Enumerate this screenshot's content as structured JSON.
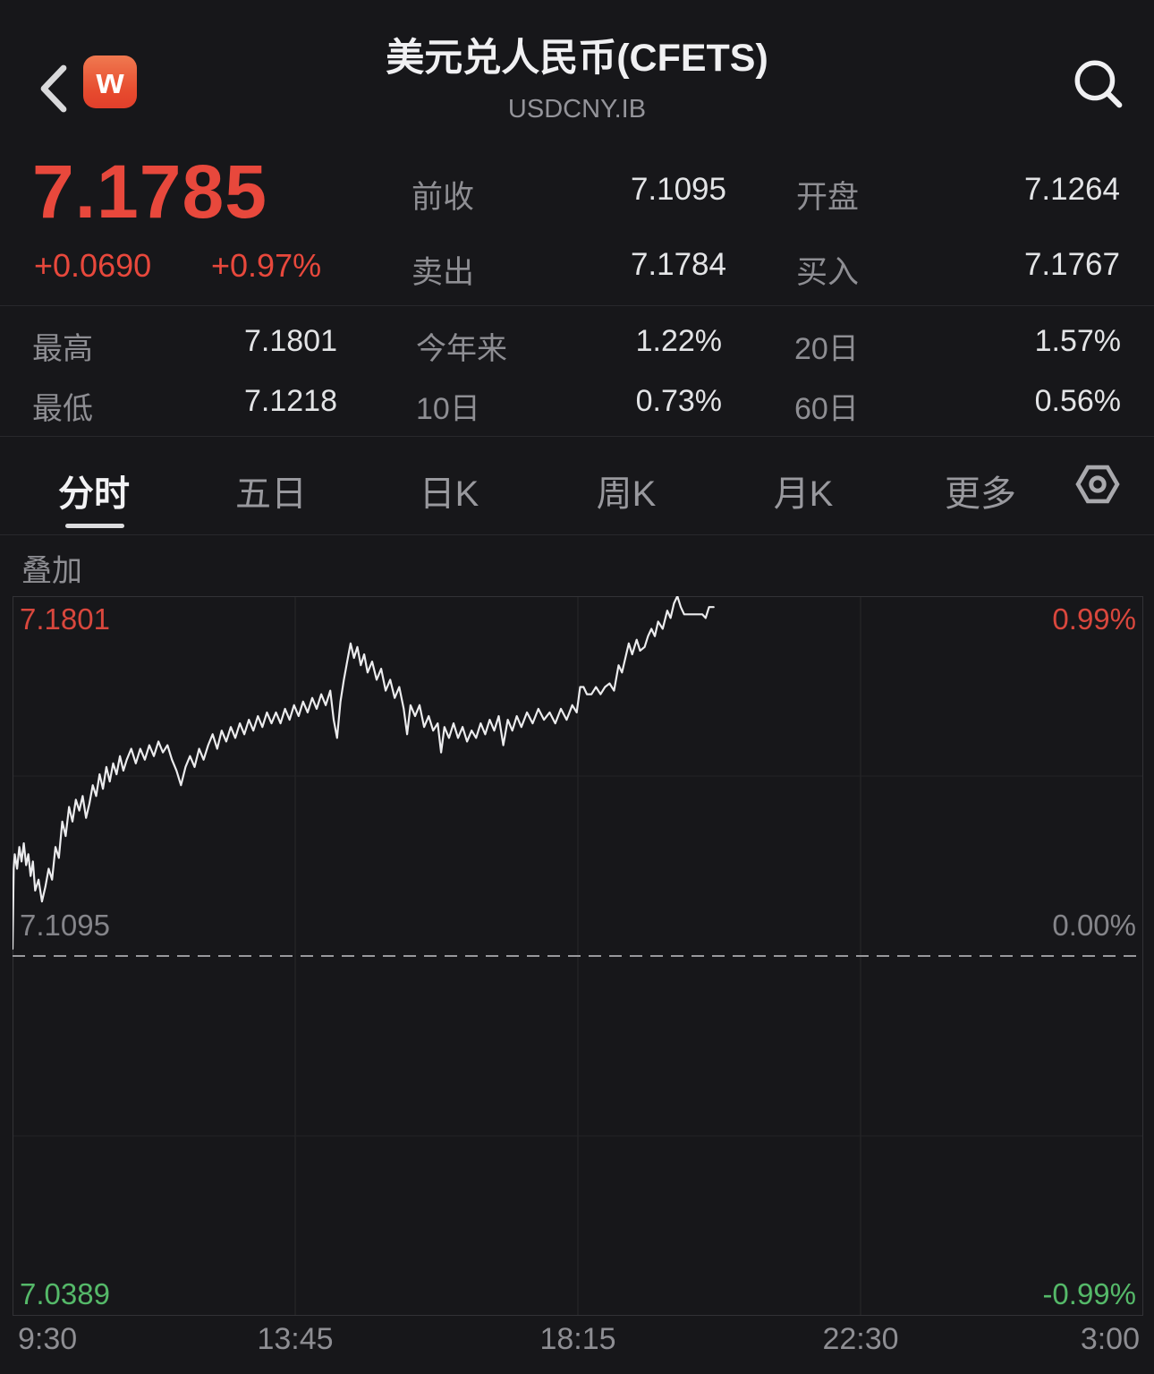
{
  "header": {
    "back_icon": "chevron-left",
    "logo_letter": "w",
    "title": "美元兑人民币(CFETS)",
    "subtitle": "USDCNY.IB",
    "search_icon": "magnifier"
  },
  "price": {
    "last": "7.1785",
    "change": "+0.0690",
    "change_pct": "+0.97%"
  },
  "quote_stats": [
    {
      "label": "前收",
      "value": "7.1095"
    },
    {
      "label": "开盘",
      "value": "7.1264"
    },
    {
      "label": "卖出",
      "value": "7.1784"
    },
    {
      "label": "买入",
      "value": "7.1767"
    }
  ],
  "range_stats": [
    {
      "label": "最高",
      "value": "7.1801"
    },
    {
      "label": "今年来",
      "value": "1.22%"
    },
    {
      "label": "20日",
      "value": "1.57%"
    },
    {
      "label": "最低",
      "value": "7.1218"
    },
    {
      "label": "10日",
      "value": "0.73%"
    },
    {
      "label": "60日",
      "value": "0.56%"
    }
  ],
  "tabs": {
    "items": [
      "分时",
      "五日",
      "日K",
      "周K",
      "月K",
      "更多"
    ],
    "active": "分时",
    "settings_icon": "hex-nut"
  },
  "overlay_button": "叠加",
  "colors": {
    "up_red": "#e8483c",
    "down_green": "#55b969",
    "muted_gray": "#8e8e93",
    "line_white": "#ececee",
    "logo_orange": "#e64a2e"
  },
  "chart_data": {
    "type": "line",
    "title": "USDCNY.IB 分时走势",
    "x_axis_labels": [
      "9:30",
      "13:45",
      "18:15",
      "22:30",
      "3:00"
    ],
    "y_left_labels": {
      "top": "7.1801",
      "mid": "7.1095",
      "bottom": "7.0389"
    },
    "y_right_labels": {
      "top": "0.99%",
      "mid": "0.00%",
      "bottom": "-0.99%"
    },
    "prev_close": 7.1095,
    "high": 7.1801,
    "low_axis": 7.0389,
    "ylim_pct": [
      -0.99,
      0.99
    ],
    "grid": true,
    "legend_position": "none",
    "series_pct": [
      [
        0.0,
        0.02
      ],
      [
        0.001,
        0.24
      ],
      [
        0.002,
        0.28
      ],
      [
        0.004,
        0.24
      ],
      [
        0.006,
        0.3
      ],
      [
        0.008,
        0.26
      ],
      [
        0.01,
        0.31
      ],
      [
        0.012,
        0.25
      ],
      [
        0.014,
        0.28
      ],
      [
        0.016,
        0.22
      ],
      [
        0.018,
        0.26
      ],
      [
        0.02,
        0.18
      ],
      [
        0.023,
        0.21
      ],
      [
        0.026,
        0.15
      ],
      [
        0.029,
        0.19
      ],
      [
        0.032,
        0.24
      ],
      [
        0.035,
        0.21
      ],
      [
        0.038,
        0.3
      ],
      [
        0.041,
        0.27
      ],
      [
        0.044,
        0.37
      ],
      [
        0.047,
        0.33
      ],
      [
        0.05,
        0.41
      ],
      [
        0.053,
        0.37
      ],
      [
        0.056,
        0.43
      ],
      [
        0.059,
        0.4
      ],
      [
        0.062,
        0.44
      ],
      [
        0.065,
        0.38
      ],
      [
        0.068,
        0.42
      ],
      [
        0.071,
        0.47
      ],
      [
        0.074,
        0.44
      ],
      [
        0.077,
        0.5
      ],
      [
        0.08,
        0.46
      ],
      [
        0.083,
        0.52
      ],
      [
        0.086,
        0.48
      ],
      [
        0.089,
        0.53
      ],
      [
        0.092,
        0.5
      ],
      [
        0.095,
        0.55
      ],
      [
        0.098,
        0.51
      ],
      [
        0.101,
        0.54
      ],
      [
        0.105,
        0.57
      ],
      [
        0.109,
        0.53
      ],
      [
        0.113,
        0.57
      ],
      [
        0.117,
        0.54
      ],
      [
        0.121,
        0.58
      ],
      [
        0.125,
        0.55
      ],
      [
        0.129,
        0.59
      ],
      [
        0.133,
        0.56
      ],
      [
        0.137,
        0.58
      ],
      [
        0.141,
        0.54
      ],
      [
        0.145,
        0.51
      ],
      [
        0.149,
        0.47
      ],
      [
        0.153,
        0.52
      ],
      [
        0.157,
        0.55
      ],
      [
        0.161,
        0.52
      ],
      [
        0.165,
        0.57
      ],
      [
        0.169,
        0.54
      ],
      [
        0.173,
        0.58
      ],
      [
        0.177,
        0.61
      ],
      [
        0.181,
        0.57
      ],
      [
        0.185,
        0.62
      ],
      [
        0.189,
        0.59
      ],
      [
        0.193,
        0.63
      ],
      [
        0.197,
        0.6
      ],
      [
        0.201,
        0.64
      ],
      [
        0.205,
        0.61
      ],
      [
        0.209,
        0.65
      ],
      [
        0.213,
        0.62
      ],
      [
        0.217,
        0.66
      ],
      [
        0.221,
        0.63
      ],
      [
        0.225,
        0.67
      ],
      [
        0.229,
        0.64
      ],
      [
        0.233,
        0.67
      ],
      [
        0.237,
        0.64
      ],
      [
        0.241,
        0.68
      ],
      [
        0.245,
        0.65
      ],
      [
        0.249,
        0.69
      ],
      [
        0.253,
        0.66
      ],
      [
        0.257,
        0.7
      ],
      [
        0.261,
        0.67
      ],
      [
        0.265,
        0.71
      ],
      [
        0.269,
        0.68
      ],
      [
        0.273,
        0.72
      ],
      [
        0.277,
        0.69
      ],
      [
        0.281,
        0.73
      ],
      [
        0.284,
        0.65
      ],
      [
        0.287,
        0.6
      ],
      [
        0.29,
        0.7
      ],
      [
        0.293,
        0.76
      ],
      [
        0.296,
        0.81
      ],
      [
        0.299,
        0.86
      ],
      [
        0.302,
        0.82
      ],
      [
        0.305,
        0.85
      ],
      [
        0.308,
        0.8
      ],
      [
        0.311,
        0.83
      ],
      [
        0.314,
        0.78
      ],
      [
        0.318,
        0.81
      ],
      [
        0.322,
        0.76
      ],
      [
        0.326,
        0.79
      ],
      [
        0.33,
        0.73
      ],
      [
        0.334,
        0.76
      ],
      [
        0.338,
        0.71
      ],
      [
        0.342,
        0.74
      ],
      [
        0.346,
        0.68
      ],
      [
        0.349,
        0.61
      ],
      [
        0.352,
        0.69
      ],
      [
        0.356,
        0.66
      ],
      [
        0.36,
        0.69
      ],
      [
        0.364,
        0.63
      ],
      [
        0.368,
        0.66
      ],
      [
        0.372,
        0.62
      ],
      [
        0.376,
        0.64
      ],
      [
        0.379,
        0.56
      ],
      [
        0.382,
        0.63
      ],
      [
        0.386,
        0.6
      ],
      [
        0.39,
        0.64
      ],
      [
        0.394,
        0.6
      ],
      [
        0.398,
        0.63
      ],
      [
        0.402,
        0.59
      ],
      [
        0.406,
        0.62
      ],
      [
        0.41,
        0.6
      ],
      [
        0.414,
        0.64
      ],
      [
        0.418,
        0.61
      ],
      [
        0.422,
        0.65
      ],
      [
        0.426,
        0.62
      ],
      [
        0.43,
        0.66
      ],
      [
        0.434,
        0.58
      ],
      [
        0.438,
        0.65
      ],
      [
        0.442,
        0.62
      ],
      [
        0.446,
        0.66
      ],
      [
        0.45,
        0.63
      ],
      [
        0.455,
        0.67
      ],
      [
        0.46,
        0.64
      ],
      [
        0.465,
        0.68
      ],
      [
        0.47,
        0.65
      ],
      [
        0.475,
        0.67
      ],
      [
        0.48,
        0.64
      ],
      [
        0.485,
        0.68
      ],
      [
        0.49,
        0.65
      ],
      [
        0.495,
        0.69
      ],
      [
        0.499,
        0.67
      ],
      [
        0.502,
        0.74
      ],
      [
        0.505,
        0.74
      ],
      [
        0.508,
        0.72
      ],
      [
        0.512,
        0.72
      ],
      [
        0.516,
        0.74
      ],
      [
        0.52,
        0.72
      ],
      [
        0.524,
        0.74
      ],
      [
        0.528,
        0.75
      ],
      [
        0.532,
        0.73
      ],
      [
        0.536,
        0.8
      ],
      [
        0.539,
        0.78
      ],
      [
        0.542,
        0.82
      ],
      [
        0.545,
        0.86
      ],
      [
        0.548,
        0.83
      ],
      [
        0.552,
        0.87
      ],
      [
        0.555,
        0.84
      ],
      [
        0.559,
        0.85
      ],
      [
        0.562,
        0.88
      ],
      [
        0.565,
        0.9
      ],
      [
        0.568,
        0.88
      ],
      [
        0.571,
        0.92
      ],
      [
        0.575,
        0.9
      ],
      [
        0.579,
        0.95
      ],
      [
        0.582,
        0.93
      ],
      [
        0.585,
        0.97
      ],
      [
        0.588,
        0.99
      ],
      [
        0.591,
        0.96
      ],
      [
        0.594,
        0.94
      ],
      [
        0.598,
        0.94
      ],
      [
        0.602,
        0.94
      ],
      [
        0.606,
        0.94
      ],
      [
        0.61,
        0.94
      ],
      [
        0.613,
        0.93
      ],
      [
        0.616,
        0.96
      ],
      [
        0.62,
        0.96
      ]
    ]
  }
}
